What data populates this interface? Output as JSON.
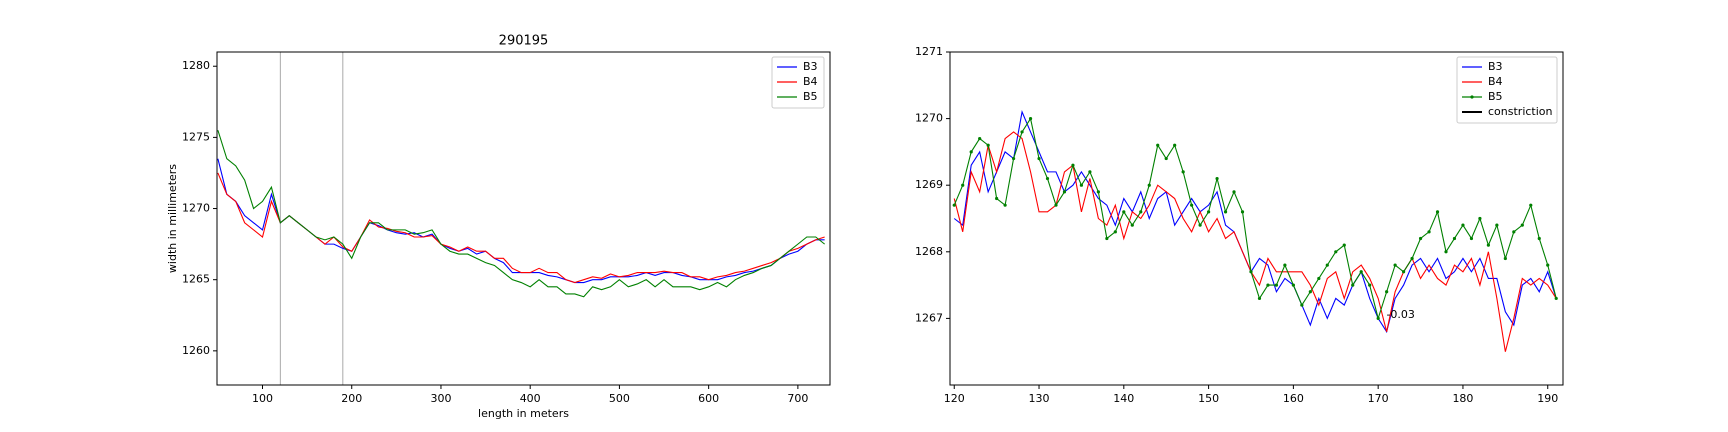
{
  "chart_data": [
    {
      "type": "line",
      "title": "290195",
      "x_label": "length in meters",
      "y_label": "width in millimeters",
      "x": [
        50,
        60,
        70,
        80,
        90,
        100,
        110,
        120,
        130,
        140,
        150,
        160,
        170,
        180,
        190,
        200,
        210,
        220,
        230,
        240,
        250,
        260,
        270,
        280,
        290,
        300,
        310,
        320,
        330,
        340,
        350,
        360,
        370,
        380,
        390,
        400,
        410,
        420,
        430,
        440,
        450,
        460,
        470,
        480,
        490,
        500,
        510,
        520,
        530,
        540,
        550,
        560,
        570,
        580,
        590,
        600,
        610,
        620,
        630,
        640,
        650,
        660,
        670,
        680,
        690,
        700,
        710,
        720,
        730
      ],
      "series": [
        {
          "name": "B3",
          "color": "#0000ff",
          "values": [
            1273.5,
            1271,
            1270.5,
            1269.5,
            1269,
            1268.5,
            1271,
            1269,
            1269.5,
            1269,
            1268.5,
            1268,
            1267.5,
            1267.5,
            1267.2,
            1267,
            1268,
            1269,
            1268.8,
            1268.5,
            1268.3,
            1268.2,
            1268.3,
            1268,
            1268.2,
            1267.5,
            1267.2,
            1267,
            1267.2,
            1266.8,
            1267,
            1266.5,
            1266.2,
            1265.5,
            1265.5,
            1265.5,
            1265.5,
            1265.3,
            1265.2,
            1265,
            1264.8,
            1264.8,
            1265,
            1265,
            1265.2,
            1265.2,
            1265.2,
            1265.3,
            1265.5,
            1265.3,
            1265.5,
            1265.5,
            1265.3,
            1265.2,
            1265,
            1265,
            1265,
            1265.2,
            1265.3,
            1265.5,
            1265.6,
            1265.8,
            1266,
            1266.5,
            1266.8,
            1267,
            1267.5,
            1267.8,
            1267.8
          ]
        },
        {
          "name": "B4",
          "color": "#ff0000",
          "values": [
            1272.5,
            1271,
            1270.5,
            1269,
            1268.5,
            1268,
            1270.5,
            1269,
            1269.5,
            1269,
            1268.5,
            1268,
            1267.5,
            1268,
            1267.3,
            1267,
            1268,
            1269.2,
            1268.7,
            1268.6,
            1268.4,
            1268.3,
            1268,
            1268,
            1268.1,
            1267.5,
            1267.3,
            1267,
            1267.3,
            1267,
            1267,
            1266.5,
            1266.5,
            1265.8,
            1265.5,
            1265.5,
            1265.8,
            1265.5,
            1265.5,
            1265,
            1264.8,
            1265,
            1265.2,
            1265.1,
            1265.4,
            1265.2,
            1265.3,
            1265.5,
            1265.5,
            1265.5,
            1265.6,
            1265.5,
            1265.5,
            1265.2,
            1265.2,
            1265,
            1265.2,
            1265.3,
            1265.5,
            1265.6,
            1265.8,
            1266,
            1266.2,
            1266.5,
            1267,
            1267.2,
            1267.5,
            1267.8,
            1268
          ]
        },
        {
          "name": "B5",
          "color": "#008000",
          "values": [
            1275.5,
            1273.5,
            1273,
            1272,
            1270,
            1270.5,
            1271.5,
            1269,
            1269.5,
            1269,
            1268.5,
            1268,
            1267.8,
            1268,
            1267.5,
            1266.5,
            1268,
            1269,
            1269,
            1268.5,
            1268.5,
            1268.5,
            1268.2,
            1268.3,
            1268.5,
            1267.5,
            1267,
            1266.8,
            1266.8,
            1266.5,
            1266.2,
            1266,
            1265.5,
            1265,
            1264.8,
            1264.5,
            1265,
            1264.5,
            1264.5,
            1264,
            1264,
            1263.8,
            1264.5,
            1264.3,
            1264.5,
            1265,
            1264.5,
            1264.7,
            1265,
            1264.5,
            1265,
            1264.5,
            1264.5,
            1264.5,
            1264.3,
            1264.5,
            1264.8,
            1264.5,
            1265,
            1265.3,
            1265.5,
            1265.8,
            1266,
            1266.5,
            1267,
            1267.5,
            1268,
            1268,
            1267.5
          ]
        }
      ],
      "xlim": [
        49,
        736
      ],
      "ylim": [
        1257.6,
        1281.0
      ],
      "xticks": [
        100,
        200,
        300,
        400,
        500,
        600,
        700
      ],
      "yticks": [
        1260,
        1265,
        1270,
        1275,
        1280
      ],
      "vlines": [
        120,
        190
      ],
      "vline_color": "#aaaaaa",
      "legend": "upper right"
    },
    {
      "type": "line",
      "x": [
        120,
        121,
        122,
        123,
        124,
        125,
        126,
        127,
        128,
        129,
        130,
        131,
        132,
        133,
        134,
        135,
        136,
        137,
        138,
        139,
        140,
        141,
        142,
        143,
        144,
        145,
        146,
        147,
        148,
        149,
        150,
        151,
        152,
        153,
        154,
        155,
        156,
        157,
        158,
        159,
        160,
        161,
        162,
        163,
        164,
        165,
        166,
        167,
        168,
        169,
        170,
        171,
        172,
        173,
        174,
        175,
        176,
        177,
        178,
        179,
        180,
        181,
        182,
        183,
        184,
        185,
        186,
        187,
        188,
        189,
        190,
        191
      ],
      "series": [
        {
          "name": "B3",
          "color": "#0000ff",
          "values": [
            1268.5,
            1268.4,
            1269.3,
            1269.5,
            1268.9,
            1269.2,
            1269.5,
            1269.4,
            1270.1,
            1269.8,
            1269.5,
            1269.2,
            1269.2,
            1268.9,
            1269.0,
            1269.2,
            1269.0,
            1268.8,
            1268.7,
            1268.4,
            1268.8,
            1268.6,
            1268.9,
            1268.5,
            1268.8,
            1268.9,
            1268.4,
            1268.6,
            1268.8,
            1268.6,
            1268.7,
            1268.9,
            1268.4,
            1268.3,
            1268.0,
            1267.7,
            1267.9,
            1267.8,
            1267.4,
            1267.6,
            1267.5,
            1267.2,
            1266.9,
            1267.3,
            1267.0,
            1267.3,
            1267.2,
            1267.5,
            1267.7,
            1267.3,
            1267.0,
            1266.8,
            1267.3,
            1267.5,
            1267.8,
            1267.9,
            1267.7,
            1267.9,
            1267.6,
            1267.7,
            1267.9,
            1267.7,
            1267.9,
            1267.6,
            1267.6,
            1267.1,
            1266.9,
            1267.5,
            1267.6,
            1267.4,
            1267.7,
            1267.3
          ]
        },
        {
          "name": "B4",
          "color": "#ff0000",
          "values": [
            1268.8,
            1268.3,
            1269.2,
            1268.9,
            1269.6,
            1269.2,
            1269.7,
            1269.8,
            1269.7,
            1269.2,
            1268.6,
            1268.6,
            1268.7,
            1269.2,
            1269.3,
            1268.6,
            1269.1,
            1268.5,
            1268.4,
            1268.7,
            1268.2,
            1268.6,
            1268.5,
            1268.7,
            1269.0,
            1268.9,
            1268.8,
            1268.5,
            1268.3,
            1268.6,
            1268.3,
            1268.5,
            1268.2,
            1268.3,
            1268.0,
            1267.7,
            1267.5,
            1267.9,
            1267.7,
            1267.7,
            1267.7,
            1267.7,
            1267.5,
            1267.2,
            1267.6,
            1267.7,
            1267.3,
            1267.7,
            1267.8,
            1267.6,
            1267.3,
            1266.8,
            1267.4,
            1267.7,
            1267.9,
            1267.6,
            1267.8,
            1267.6,
            1267.5,
            1267.8,
            1267.7,
            1267.9,
            1267.5,
            1268.0,
            1267.3,
            1266.5,
            1267.0,
            1267.6,
            1267.5,
            1267.6,
            1267.5,
            1267.3
          ]
        },
        {
          "name": "B5",
          "color": "#008000",
          "markers": true,
          "values": [
            1268.7,
            1269.0,
            1269.5,
            1269.7,
            1269.6,
            1268.8,
            1268.7,
            1269.4,
            1269.8,
            1270.0,
            1269.4,
            1269.1,
            1268.7,
            1268.9,
            1269.3,
            1269.0,
            1269.2,
            1268.9,
            1268.2,
            1268.3,
            1268.6,
            1268.4,
            1268.6,
            1269.0,
            1269.6,
            1269.4,
            1269.6,
            1269.2,
            1268.7,
            1268.4,
            1268.6,
            1269.1,
            1268.6,
            1268.9,
            1268.6,
            1267.7,
            1267.3,
            1267.5,
            1267.5,
            1267.8,
            1267.5,
            1267.2,
            1267.4,
            1267.6,
            1267.8,
            1268.0,
            1268.1,
            1267.5,
            1267.7,
            1267.5,
            1267.0,
            1267.4,
            1267.8,
            1267.7,
            1267.9,
            1268.2,
            1268.3,
            1268.6,
            1268.0,
            1268.2,
            1268.4,
            1268.2,
            1268.5,
            1268.1,
            1268.4,
            1267.9,
            1268.3,
            1268.4,
            1268.7,
            1268.2,
            1267.8,
            1267.3
          ]
        },
        {
          "name": "constriction",
          "color": "#000000",
          "values": [
            null,
            null,
            null,
            null,
            null,
            null,
            null,
            null,
            null,
            null,
            null,
            null,
            null,
            null,
            null,
            null,
            null,
            null,
            null,
            null,
            null,
            null,
            null,
            null,
            null,
            null,
            null,
            null,
            null,
            null,
            null,
            null,
            null,
            null,
            null,
            null,
            null,
            null,
            null,
            null,
            null,
            null,
            null,
            null,
            null,
            null,
            null,
            null,
            null,
            null,
            null,
            null,
            null,
            null,
            null,
            null,
            null,
            null,
            null,
            null,
            null,
            null,
            null,
            null,
            null,
            null,
            null,
            null,
            null,
            null,
            null,
            null
          ]
        }
      ],
      "xlim": [
        119.5,
        191.8
      ],
      "ylim": [
        1266.0,
        1271.0
      ],
      "xticks": [
        120,
        130,
        140,
        150,
        160,
        170,
        180,
        190
      ],
      "yticks": [
        1267,
        1268,
        1269,
        1270,
        1271
      ],
      "annotations": [
        "-0.03"
      ],
      "legend": "upper right"
    }
  ]
}
